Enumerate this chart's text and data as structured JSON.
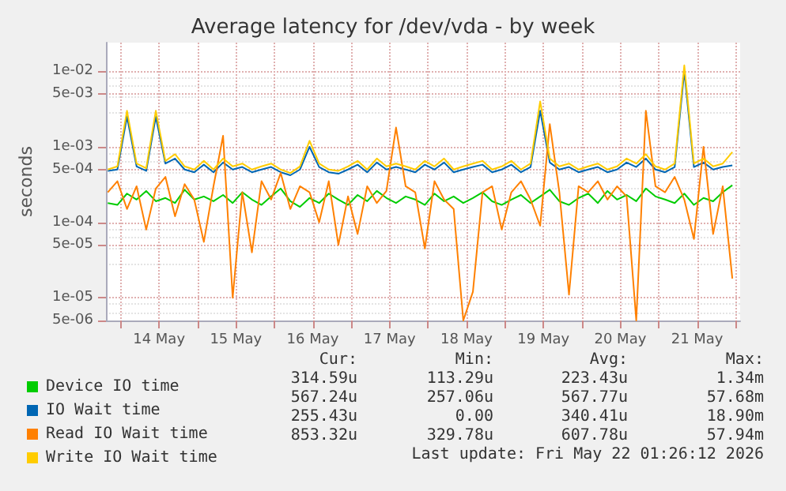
{
  "chart_data": {
    "type": "line",
    "title": "Average latency for /dev/vda - by week",
    "ylabel": "seconds",
    "x": [
      "2026-05-13T20:00",
      "2026-05-13T23:00",
      "2026-05-14T02:00",
      "2026-05-14T05:00",
      "2026-05-14T08:00",
      "2026-05-14T11:00",
      "2026-05-14T14:00",
      "2026-05-14T17:00",
      "2026-05-14T20:00",
      "2026-05-14T23:00",
      "2026-05-15T02:00",
      "2026-05-15T05:00",
      "2026-05-15T08:00",
      "2026-05-15T11:00",
      "2026-05-15T14:00",
      "2026-05-15T17:00",
      "2026-05-15T20:00",
      "2026-05-15T23:00",
      "2026-05-16T02:00",
      "2026-05-16T05:00",
      "2026-05-16T08:00",
      "2026-05-16T11:00",
      "2026-05-16T14:00",
      "2026-05-16T17:00",
      "2026-05-16T20:00",
      "2026-05-16T23:00",
      "2026-05-17T02:00",
      "2026-05-17T05:00",
      "2026-05-17T08:00",
      "2026-05-17T11:00",
      "2026-05-17T14:00",
      "2026-05-17T17:00",
      "2026-05-17T20:00",
      "2026-05-17T23:00",
      "2026-05-18T02:00",
      "2026-05-18T05:00",
      "2026-05-18T08:00",
      "2026-05-18T11:00",
      "2026-05-18T14:00",
      "2026-05-18T17:00",
      "2026-05-18T20:00",
      "2026-05-18T23:00",
      "2026-05-19T02:00",
      "2026-05-19T05:00",
      "2026-05-19T08:00",
      "2026-05-19T11:00",
      "2026-05-19T14:00",
      "2026-05-19T17:00",
      "2026-05-19T20:00",
      "2026-05-19T23:00",
      "2026-05-20T02:00",
      "2026-05-20T05:00",
      "2026-05-20T08:00",
      "2026-05-20T11:00",
      "2026-05-20T14:00",
      "2026-05-20T17:00",
      "2026-05-20T20:00",
      "2026-05-20T23:00",
      "2026-05-21T02:00",
      "2026-05-21T05:00",
      "2026-05-21T08:00",
      "2026-05-21T11:00",
      "2026-05-21T14:00",
      "2026-05-21T17:00",
      "2026-05-21T20:00",
      "2026-05-21T23:00"
    ],
    "series": [
      {
        "name": "Device IO time",
        "color": "#00cc00",
        "values": [
          0.00018,
          0.00017,
          0.00024,
          0.0002,
          0.00026,
          0.00019,
          0.00021,
          0.00018,
          0.00027,
          0.0002,
          0.00022,
          0.00019,
          0.00023,
          0.00018,
          0.00025,
          0.0002,
          0.00017,
          0.00022,
          0.00028,
          0.00019,
          0.00016,
          0.00021,
          0.00018,
          0.00024,
          0.0002,
          0.00017,
          0.00023,
          0.00019,
          0.00026,
          0.00021,
          0.00018,
          0.00022,
          0.0002,
          0.00017,
          0.00024,
          0.00019,
          0.00022,
          0.00018,
          0.00021,
          0.00025,
          0.00019,
          0.00017,
          0.0002,
          0.00023,
          0.00018,
          0.00022,
          0.00027,
          0.00019,
          0.00017,
          0.00021,
          0.00024,
          0.00018,
          0.00026,
          0.0002,
          0.00023,
          0.00019,
          0.00028,
          0.00022,
          0.0002,
          0.00018,
          0.00024,
          0.00017,
          0.00021,
          0.00019,
          0.00025,
          0.00031
        ]
      },
      {
        "name": "IO Wait time",
        "color": "#0066b3",
        "values": [
          0.00048,
          0.0005,
          0.0025,
          0.00055,
          0.00048,
          0.0025,
          0.0006,
          0.0007,
          0.0005,
          0.00046,
          0.00058,
          0.00046,
          0.00062,
          0.0005,
          0.00054,
          0.00046,
          0.0005,
          0.00054,
          0.00046,
          0.00042,
          0.0005,
          0.001,
          0.00054,
          0.00046,
          0.00044,
          0.0005,
          0.00058,
          0.00046,
          0.00062,
          0.0005,
          0.00054,
          0.0005,
          0.00046,
          0.00058,
          0.0005,
          0.00062,
          0.00046,
          0.0005,
          0.00054,
          0.00058,
          0.00046,
          0.0005,
          0.00058,
          0.00046,
          0.00054,
          0.003,
          0.00062,
          0.0005,
          0.00054,
          0.00046,
          0.0005,
          0.00054,
          0.00046,
          0.0005,
          0.00062,
          0.00054,
          0.0007,
          0.0005,
          0.00046,
          0.00054,
          0.01,
          0.00054,
          0.00062,
          0.0005,
          0.00054,
          0.000567
        ]
      },
      {
        "name": "Read IO Wait time",
        "color": "#ff8000",
        "values": [
          0.00025,
          0.00035,
          0.00015,
          0.0003,
          8e-05,
          0.00028,
          0.0004,
          0.00012,
          0.00032,
          0.0002,
          5.5e-05,
          0.0003,
          0.0014,
          1e-05,
          0.00025,
          4e-05,
          0.00035,
          0.0002,
          0.00045,
          0.00015,
          0.0003,
          0.00025,
          0.0001,
          0.00035,
          5e-05,
          0.00022,
          7e-05,
          0.0003,
          0.00018,
          0.00026,
          0.0018,
          0.0003,
          0.00025,
          4.5e-05,
          0.00035,
          0.0002,
          0.00015,
          5e-06,
          1.2e-05,
          0.00025,
          0.0003,
          8e-05,
          0.00025,
          0.00035,
          0.0002,
          9e-05,
          0.002,
          0.00025,
          1.1e-05,
          0.0003,
          0.00025,
          0.00035,
          0.0002,
          0.0003,
          0.00022,
          5e-06,
          0.003,
          0.0003,
          0.00025,
          0.0004,
          0.0002,
          6e-05,
          0.001,
          7e-05,
          0.0003,
          1.8e-05
        ]
      },
      {
        "name": "Write IO Wait time",
        "color": "#ffcc00",
        "values": [
          0.0005,
          0.00055,
          0.003,
          0.0006,
          0.00052,
          0.003,
          0.00065,
          0.0008,
          0.00055,
          0.0005,
          0.00065,
          0.0005,
          0.0007,
          0.00055,
          0.0006,
          0.0005,
          0.00055,
          0.0006,
          0.0005,
          0.00045,
          0.00055,
          0.0012,
          0.0006,
          0.0005,
          0.00048,
          0.00055,
          0.00065,
          0.0005,
          0.0007,
          0.00055,
          0.0006,
          0.00055,
          0.0005,
          0.00065,
          0.00055,
          0.0007,
          0.0005,
          0.00055,
          0.0006,
          0.00065,
          0.0005,
          0.00055,
          0.00065,
          0.0005,
          0.0006,
          0.004,
          0.0007,
          0.00055,
          0.0006,
          0.0005,
          0.00055,
          0.0006,
          0.0005,
          0.00055,
          0.0007,
          0.0006,
          0.0008,
          0.00055,
          0.0005,
          0.0006,
          0.012,
          0.0006,
          0.0007,
          0.00055,
          0.0006,
          0.00085
        ]
      }
    ],
    "log": "y",
    "xlim": [
      "2026-05-13T19:26",
      "2026-05-22T01:26"
    ],
    "xticks": [
      {
        "value": "2026-05-14T00:00",
        "label": null
      },
      {
        "value": "2026-05-14T12:00",
        "label": "14 May"
      },
      {
        "value": "2026-05-15T00:00",
        "label": null
      },
      {
        "value": "2026-05-15T12:00",
        "label": "15 May"
      },
      {
        "value": "2026-05-16T00:00",
        "label": null
      },
      {
        "value": "2026-05-16T12:00",
        "label": "16 May"
      },
      {
        "value": "2026-05-17T00:00",
        "label": null
      },
      {
        "value": "2026-05-17T12:00",
        "label": "17 May"
      },
      {
        "value": "2026-05-18T00:00",
        "label": null
      },
      {
        "value": "2026-05-18T12:00",
        "label": "18 May"
      },
      {
        "value": "2026-05-19T00:00",
        "label": null
      },
      {
        "value": "2026-05-19T12:00",
        "label": "19 May"
      },
      {
        "value": "2026-05-20T00:00",
        "label": null
      },
      {
        "value": "2026-05-20T12:00",
        "label": "20 May"
      },
      {
        "value": "2026-05-21T00:00",
        "label": null
      },
      {
        "value": "2026-05-21T12:00",
        "label": "21 May"
      },
      {
        "value": "2026-05-22T00:00",
        "label": null
      }
    ],
    "ylim": [
      5e-06,
      0.024
    ],
    "yticks": [
      {
        "value": 5e-06,
        "label": "5e-06"
      },
      {
        "value": 1e-05,
        "label": "1e-05"
      },
      {
        "value": 5e-05,
        "label": "5e-05"
      },
      {
        "value": 0.0001,
        "label": "1e-04"
      },
      {
        "value": 0.0005,
        "label": "5e-04"
      },
      {
        "value": 0.001,
        "label": "1e-03"
      },
      {
        "value": 0.005,
        "label": "5e-03"
      },
      {
        "value": 0.01,
        "label": "1e-02"
      }
    ],
    "grid": true,
    "legend": "bottom",
    "marker": "none",
    "line_style": "solid",
    "annotations": [
      "Cur:",
      "Min:",
      "Avg:",
      "Max:",
      "314.59u",
      "113.29u",
      "223.43u",
      "1.34m",
      "567.24u",
      "257.06u",
      "567.77u",
      "57.68m",
      "255.43u",
      "0.00",
      "340.41u",
      "18.90m",
      "853.32u",
      "329.78u",
      "607.78u",
      "57.94m",
      "Last update: Fri May 22 01:26:12 2026"
    ]
  }
}
